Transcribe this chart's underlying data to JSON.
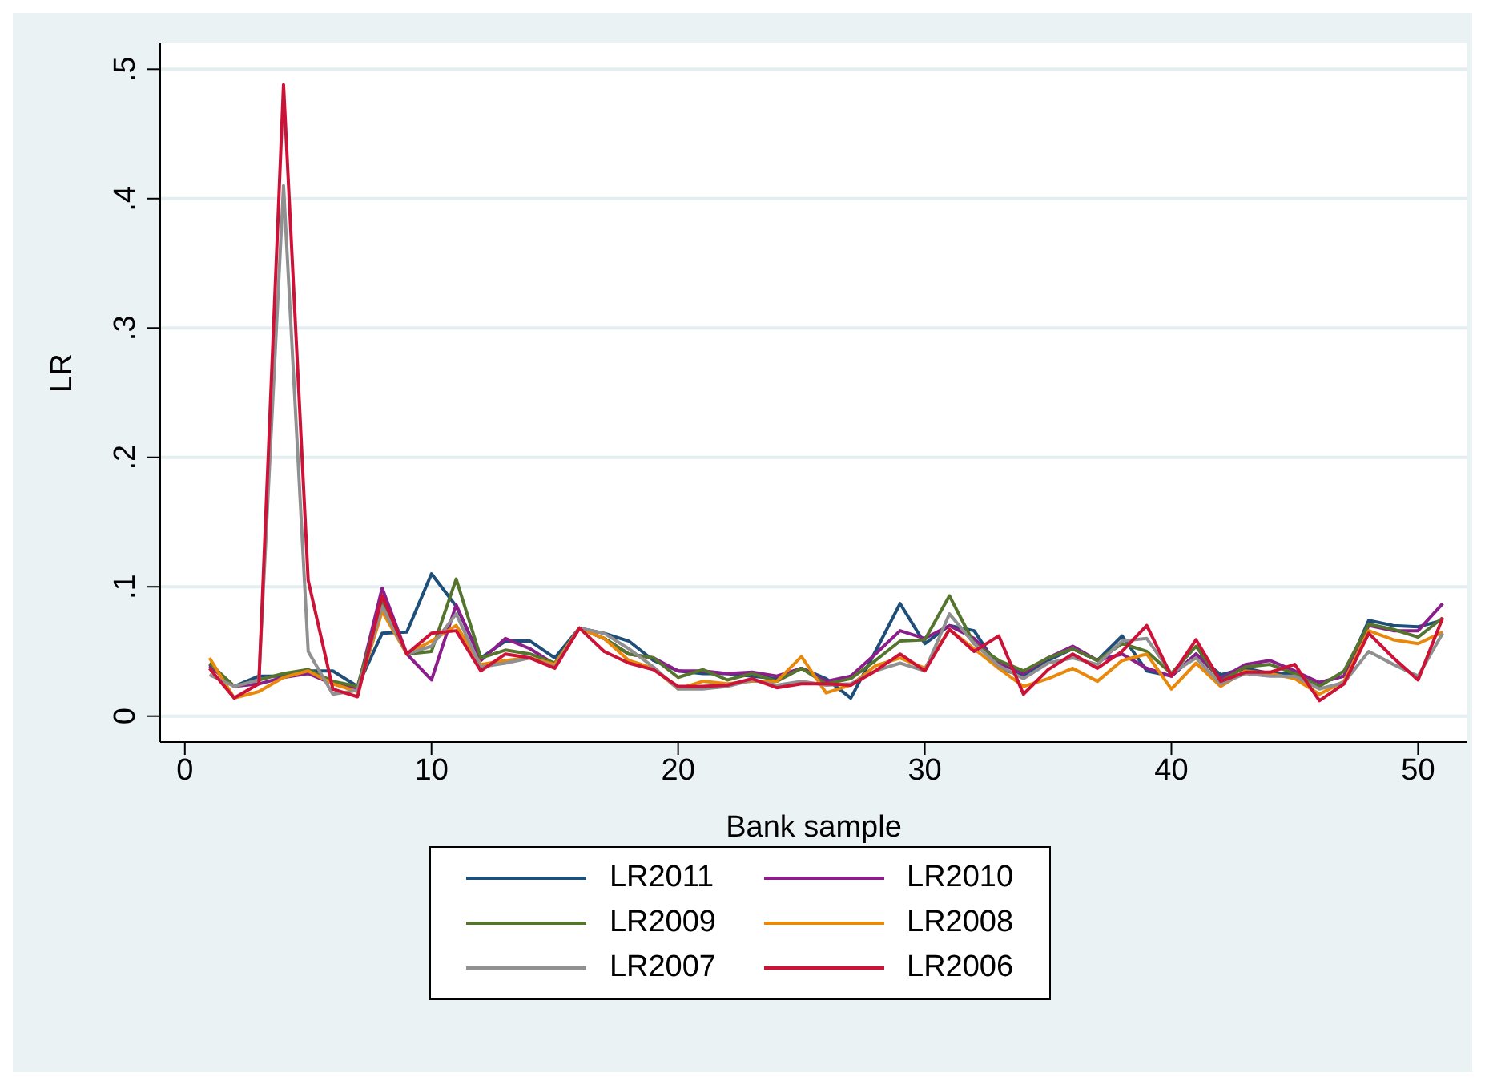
{
  "chart_data": {
    "type": "line",
    "xlabel": "Bank sample",
    "ylabel": "LR",
    "x": [
      1,
      2,
      3,
      4,
      5,
      6,
      7,
      8,
      9,
      10,
      11,
      12,
      13,
      14,
      15,
      16,
      17,
      18,
      19,
      20,
      21,
      22,
      23,
      24,
      25,
      26,
      27,
      28,
      29,
      30,
      31,
      32,
      33,
      34,
      35,
      36,
      37,
      38,
      39,
      40,
      41,
      42,
      43,
      44,
      45,
      46,
      47,
      48,
      49,
      50,
      51
    ],
    "xlim": [
      -1,
      52
    ],
    "xticks": [
      0,
      10,
      20,
      30,
      40,
      50
    ],
    "ylim": [
      -0.02,
      0.52
    ],
    "yticks": [
      {
        "value": 0,
        "label": "0"
      },
      {
        "value": 0.1,
        "label": ".1"
      },
      {
        "value": 0.2,
        "label": ".2"
      },
      {
        "value": 0.3,
        "label": ".3"
      },
      {
        "value": 0.4,
        "label": ".4"
      },
      {
        "value": 0.5,
        "label": ".5"
      }
    ],
    "grid": "y",
    "legend": "bottom",
    "series": [
      {
        "name": "LR2011",
        "color": "#1f4e79",
        "values": [
          0.04,
          0.023,
          0.031,
          0.031,
          0.035,
          0.035,
          0.023,
          0.064,
          0.065,
          0.11,
          0.085,
          0.045,
          0.058,
          0.058,
          0.045,
          0.068,
          0.064,
          0.058,
          0.043,
          0.035,
          0.033,
          0.033,
          0.031,
          0.029,
          0.037,
          0.029,
          0.014,
          0.05,
          0.087,
          0.056,
          0.07,
          0.066,
          0.037,
          0.031,
          0.043,
          0.052,
          0.043,
          0.062,
          0.035,
          0.031,
          0.048,
          0.032,
          0.037,
          0.033,
          0.033,
          0.026,
          0.031,
          0.074,
          0.07,
          0.069,
          0.074
        ]
      },
      {
        "name": "LR2010",
        "color": "#8b1e8b",
        "values": [
          0.039,
          0.023,
          0.025,
          0.03,
          0.033,
          0.025,
          0.021,
          0.099,
          0.048,
          0.028,
          0.086,
          0.043,
          0.06,
          0.052,
          0.04,
          0.068,
          0.06,
          0.048,
          0.045,
          0.035,
          0.035,
          0.033,
          0.034,
          0.031,
          0.037,
          0.027,
          0.031,
          0.048,
          0.066,
          0.06,
          0.07,
          0.06,
          0.041,
          0.033,
          0.045,
          0.054,
          0.043,
          0.048,
          0.037,
          0.031,
          0.048,
          0.029,
          0.04,
          0.043,
          0.035,
          0.026,
          0.031,
          0.07,
          0.066,
          0.066,
          0.087
        ]
      },
      {
        "name": "LR2009",
        "color": "#55752f",
        "values": [
          0.041,
          0.023,
          0.028,
          0.033,
          0.036,
          0.027,
          0.023,
          0.089,
          0.048,
          0.05,
          0.106,
          0.045,
          0.051,
          0.048,
          0.041,
          0.068,
          0.06,
          0.048,
          0.045,
          0.03,
          0.036,
          0.028,
          0.033,
          0.027,
          0.037,
          0.025,
          0.029,
          0.043,
          0.058,
          0.059,
          0.093,
          0.056,
          0.043,
          0.035,
          0.045,
          0.052,
          0.043,
          0.056,
          0.05,
          0.033,
          0.054,
          0.027,
          0.038,
          0.04,
          0.033,
          0.023,
          0.035,
          0.071,
          0.067,
          0.061,
          0.076
        ]
      },
      {
        "name": "LR2008",
        "color": "#e8890c",
        "values": [
          0.045,
          0.014,
          0.019,
          0.03,
          0.035,
          0.025,
          0.019,
          0.081,
          0.048,
          0.058,
          0.07,
          0.04,
          0.043,
          0.045,
          0.04,
          0.068,
          0.06,
          0.043,
          0.037,
          0.021,
          0.027,
          0.025,
          0.027,
          0.027,
          0.046,
          0.018,
          0.024,
          0.039,
          0.045,
          0.037,
          0.067,
          0.052,
          0.037,
          0.023,
          0.029,
          0.037,
          0.027,
          0.043,
          0.048,
          0.021,
          0.041,
          0.023,
          0.035,
          0.033,
          0.029,
          0.017,
          0.027,
          0.066,
          0.059,
          0.056,
          0.065
        ]
      },
      {
        "name": "LR2007",
        "color": "#909090",
        "values": [
          0.032,
          0.023,
          0.028,
          0.41,
          0.05,
          0.017,
          0.02,
          0.085,
          0.048,
          0.054,
          0.079,
          0.038,
          0.041,
          0.045,
          0.038,
          0.068,
          0.064,
          0.052,
          0.038,
          0.021,
          0.021,
          0.023,
          0.028,
          0.024,
          0.027,
          0.024,
          0.025,
          0.035,
          0.041,
          0.035,
          0.079,
          0.056,
          0.039,
          0.029,
          0.041,
          0.045,
          0.04,
          0.058,
          0.06,
          0.033,
          0.045,
          0.025,
          0.033,
          0.031,
          0.031,
          0.021,
          0.026,
          0.05,
          0.04,
          0.031,
          0.064
        ]
      },
      {
        "name": "LR2006",
        "color": "#cc1236",
        "values": [
          0.037,
          0.014,
          0.025,
          0.488,
          0.105,
          0.021,
          0.015,
          0.093,
          0.048,
          0.064,
          0.066,
          0.035,
          0.048,
          0.045,
          0.037,
          0.068,
          0.05,
          0.041,
          0.036,
          0.023,
          0.023,
          0.024,
          0.029,
          0.022,
          0.025,
          0.025,
          0.024,
          0.035,
          0.048,
          0.035,
          0.067,
          0.05,
          0.062,
          0.017,
          0.036,
          0.048,
          0.037,
          0.05,
          0.07,
          0.031,
          0.059,
          0.027,
          0.034,
          0.034,
          0.04,
          0.012,
          0.025,
          0.064,
          0.045,
          0.028,
          0.076
        ]
      }
    ]
  }
}
